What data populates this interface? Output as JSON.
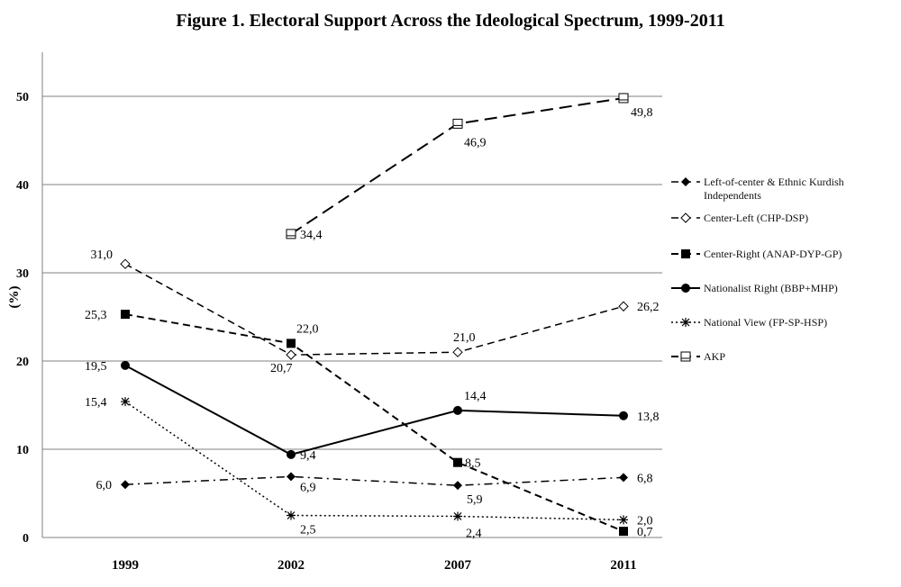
{
  "chart_data": {
    "type": "line",
    "title": "Figure 1. Electoral Support Across the Ideological Spectrum, 1999-2011",
    "xlabel": "",
    "ylabel": "(%)",
    "categories": [
      "1999",
      "2002",
      "2007",
      "2011"
    ],
    "ylim": [
      0,
      55
    ],
    "yticks": [
      "0",
      "10",
      "20",
      "30",
      "40",
      "50"
    ],
    "grid": true,
    "legend_position": "right",
    "series": [
      {
        "name": "Left-of-center & Ethnic Kurdish Independents",
        "values": [
          6.0,
          6.9,
          5.9,
          6.8
        ],
        "labels": [
          "6,0",
          "6,9",
          "5,9",
          "6,8"
        ],
        "dash": "dash-dot",
        "marker": "diamond-filled",
        "width": 1.5
      },
      {
        "name": "Center-Left (CHP-DSP)",
        "values": [
          31.0,
          20.7,
          21.0,
          26.2
        ],
        "labels": [
          "31,0",
          "20,7",
          "21,0",
          "26,2"
        ],
        "dash": "dash",
        "marker": "diamond-open",
        "width": 1.5
      },
      {
        "name": "Center-Right (ANAP-DYP-GP)",
        "values": [
          25.3,
          22.0,
          8.5,
          0.7
        ],
        "labels": [
          "25,3",
          "22,0",
          "8,5",
          "0,7"
        ],
        "dash": "dash",
        "marker": "square-filled",
        "width": 2
      },
      {
        "name": "Nationalist Right (BBP+MHP)",
        "values": [
          19.5,
          9.4,
          14.4,
          13.8
        ],
        "labels": [
          "19,5",
          "9,4",
          "14,4",
          "13,8"
        ],
        "dash": "solid",
        "marker": "circle-filled",
        "width": 2
      },
      {
        "name": "National View (FP-SP-HSP)",
        "values": [
          15.4,
          2.5,
          2.4,
          2.0
        ],
        "labels": [
          "15,4",
          "2,5",
          "2,4",
          "2,0"
        ],
        "dash": "dot",
        "marker": "asterisk",
        "width": 1.5
      },
      {
        "name": "AKP",
        "values": [
          null,
          34.4,
          46.9,
          49.8
        ],
        "labels": [
          null,
          "34,4",
          "46,9",
          "49,8"
        ],
        "dash": "long-dash",
        "marker": "square-open",
        "width": 2
      }
    ],
    "colors": {
      "line": "#000000",
      "grid": "#808080",
      "background": "#ffffff"
    }
  }
}
